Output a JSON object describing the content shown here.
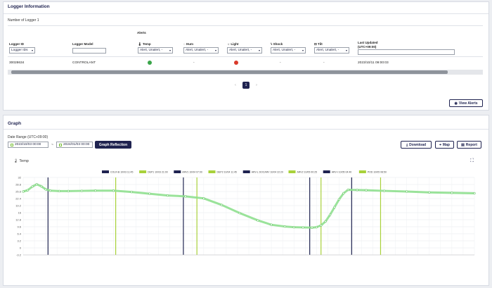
{
  "logger_info": {
    "title": "Logger Information",
    "count_label": "Number of Logger 1",
    "alerts_header": "Alerts",
    "columns": {
      "logger_id": "Logger ID",
      "logger_model": "Logger Model",
      "temp": "Temp",
      "hum": "Hum",
      "light": "Light",
      "shock": "Shock",
      "tilt": "Tilt",
      "last_updated": "Last Updated",
      "last_updated_sub": "(UTC+09:00)"
    },
    "filters": {
      "logger_id": "Logger IDs",
      "temp": "Alert, Unalert, -",
      "hum": "Alert, Unalert, -",
      "light": "Alert, Unalert, -",
      "shock": "Alert, Unalert, -",
      "tilt": "Alert, Unalert, -"
    },
    "row": {
      "logger_id": "30028634",
      "logger_model": "CONTROLANT",
      "hum": "-",
      "shock": "-",
      "tilt": "-",
      "last_updated": "2023/10/11 09:00:03",
      "temp_status_color": "#3aa54a",
      "light_status_color": "#d93a2b"
    },
    "pagination": {
      "prev": "‹",
      "current": "1",
      "next": "›"
    },
    "view_alerts": "View Alerts"
  },
  "graph": {
    "title": "Graph",
    "date_range_label": "Date Range (UTC+09:00)",
    "start_date": "2023/10/03 00:00",
    "separator": "~",
    "end_date": "2024/01/03 00:00",
    "reflect_button": "Graph Reflection",
    "download": "Download",
    "map": "Map",
    "report": "Report",
    "chart_title": "Temp"
  },
  "chart_data": {
    "type": "line",
    "title": "Temp",
    "ylim": [
      -3.2,
      32
    ],
    "yticks": [
      "32",
      "28.8",
      "25.6",
      "22.4",
      "19.2",
      "16",
      "12.8",
      "9.6",
      "6.4",
      "3.2",
      "0",
      "-3.2"
    ],
    "grid": true,
    "legend_placement": "top",
    "events": [
      {
        "name": "COLR-B 10/03 11:45",
        "color": "#1f2350",
        "x": 0.055
      },
      {
        "name": "DEP1 10/03 21:00",
        "color": "#a8d13a",
        "x": 0.205
      },
      {
        "name": "ARV1 10/04 07:00",
        "color": "#1f2350",
        "x": 0.355
      },
      {
        "name": "DEP2 10/04 11:45",
        "color": "#a8d13a",
        "x": 0.385
      },
      {
        "name": "ARV-L DOCARV 10/04 22:20",
        "color": "#1f2350",
        "x": 0.635
      },
      {
        "name": "ARV2 10/05 00:25",
        "color": "#a8d13a",
        "x": 0.66
      },
      {
        "name": "ARV-I 10/05 04:40",
        "color": "#1f2350",
        "x": 0.728
      },
      {
        "name": "POD 10/05 08:50",
        "color": "#a8d13a",
        "x": 0.792
      }
    ],
    "series": [
      {
        "color": "#8fe08f",
        "x": [
          0,
          0.01,
          0.02,
          0.03,
          0.04,
          0.05,
          0.06,
          0.08,
          0.1,
          0.13,
          0.16,
          0.2,
          0.24,
          0.28,
          0.32,
          0.36,
          0.4,
          0.44,
          0.48,
          0.52,
          0.55,
          0.58,
          0.6,
          0.62,
          0.64,
          0.65,
          0.66,
          0.67,
          0.68,
          0.69,
          0.7,
          0.71,
          0.72,
          0.74,
          0.76,
          0.8,
          0.85,
          0.9,
          0.95,
          1.0
        ],
        "y": [
          25.6,
          26.2,
          27.8,
          28.9,
          28.0,
          26.6,
          26.0,
          25.8,
          25.8,
          25.9,
          26.0,
          26.0,
          25.4,
          24.6,
          23.8,
          23.4,
          22.5,
          19.5,
          15.8,
          12.5,
          10.5,
          9.7,
          9.4,
          9.3,
          9.2,
          9.4,
          10.2,
          12.0,
          15.0,
          18.5,
          22.0,
          24.8,
          26.4,
          26.3,
          26.2,
          25.9,
          25.6,
          25.2,
          25.0,
          24.8
        ]
      }
    ]
  }
}
